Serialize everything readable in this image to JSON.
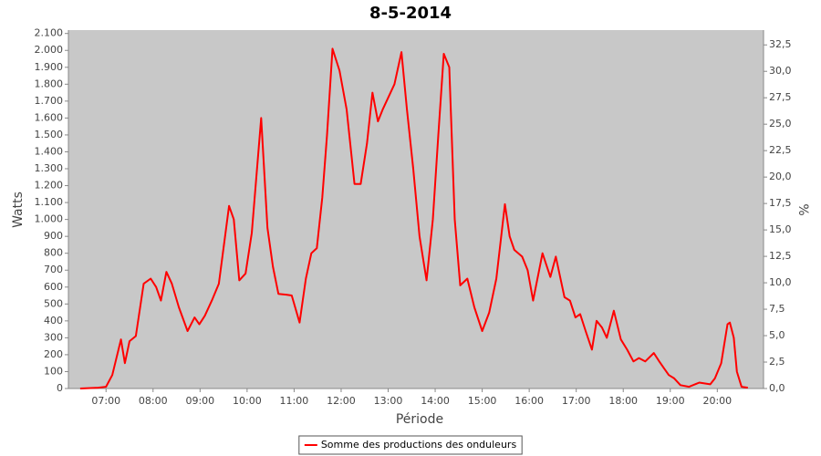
{
  "chart_data": {
    "type": "line",
    "title": "8-5-2014",
    "x_label": "Période",
    "y_label": "Watts",
    "y2_label": "%",
    "x": [
      "06:27",
      "06:50",
      "07:00",
      "07:08",
      "07:19",
      "07:24",
      "07:30",
      "07:38",
      "07:48",
      "07:57",
      "08:04",
      "08:10",
      "08:17",
      "08:24",
      "08:33",
      "08:44",
      "08:53",
      "08:59",
      "09:06",
      "09:15",
      "09:24",
      "09:37",
      "09:43",
      "09:50",
      "09:58",
      "10:06",
      "10:18",
      "10:26",
      "10:33",
      "10:40",
      "10:50",
      "10:57",
      "11:07",
      "11:15",
      "11:22",
      "11:29",
      "11:36",
      "11:42",
      "11:49",
      "11:58",
      "12:07",
      "12:17",
      "12:25",
      "12:33",
      "12:40",
      "12:47",
      "12:53",
      "13:00",
      "13:08",
      "13:17",
      "13:24",
      "13:32",
      "13:40",
      "13:49",
      "13:57",
      "14:04",
      "14:11",
      "14:18",
      "14:25",
      "14:32",
      "14:41",
      "14:50",
      "15:00",
      "15:09",
      "15:18",
      "15:29",
      "15:35",
      "15:41",
      "15:51",
      "15:58",
      "16:05",
      "16:17",
      "16:27",
      "16:34",
      "16:45",
      "16:52",
      "16:59",
      "17:05",
      "17:12",
      "17:20",
      "17:26",
      "17:33",
      "17:39",
      "17:48",
      "17:57",
      "18:05",
      "18:13",
      "18:20",
      "18:28",
      "18:39",
      "18:46",
      "18:52",
      "18:58",
      "19:05",
      "19:13",
      "19:24",
      "19:37",
      "19:51",
      "19:57",
      "20:05",
      "20:13",
      "20:16",
      "20:21",
      "20:25",
      "20:31",
      "20:39"
    ],
    "series": [
      {
        "name": "Somme des productions des onduleurs",
        "color": "#ff0000",
        "values": [
          0,
          5,
          10,
          80,
          290,
          150,
          280,
          310,
          620,
          650,
          600,
          520,
          690,
          620,
          480,
          340,
          420,
          380,
          430,
          520,
          620,
          1080,
          1000,
          640,
          680,
          920,
          1600,
          950,
          720,
          560,
          555,
          550,
          390,
          650,
          800,
          830,
          1130,
          1500,
          2010,
          1880,
          1650,
          1210,
          1210,
          1450,
          1750,
          1580,
          1650,
          1720,
          1800,
          1990,
          1650,
          1300,
          900,
          640,
          1000,
          1500,
          1980,
          1900,
          1000,
          610,
          650,
          480,
          340,
          450,
          650,
          1090,
          900,
          820,
          780,
          700,
          520,
          800,
          660,
          780,
          540,
          520,
          420,
          440,
          340,
          230,
          400,
          360,
          300,
          460,
          290,
          230,
          160,
          180,
          160,
          210,
          160,
          120,
          80,
          60,
          20,
          10,
          35,
          25,
          60,
          150,
          380,
          390,
          300,
          100,
          10,
          5
        ]
      }
    ],
    "xlim": [
      "06:12",
      "20:59"
    ],
    "xticks": [
      "07:00",
      "08:00",
      "09:00",
      "10:00",
      "11:00",
      "12:00",
      "13:00",
      "14:00",
      "15:00",
      "16:00",
      "17:00",
      "18:00",
      "19:00",
      "20:00"
    ],
    "ylim": [
      0,
      2120
    ],
    "yticks": [
      0,
      100,
      200,
      300,
      400,
      500,
      600,
      700,
      800,
      900,
      {
        "value": 1000,
        "label": "1.000"
      },
      {
        "value": 1100,
        "label": "1.100"
      },
      {
        "value": 1200,
        "label": "1.200"
      },
      {
        "value": 1300,
        "label": "1.300"
      },
      {
        "value": 1400,
        "label": "1.400"
      },
      {
        "value": 1500,
        "label": "1.500"
      },
      {
        "value": 1600,
        "label": "1.600"
      },
      {
        "value": 1700,
        "label": "1.700"
      },
      {
        "value": 1800,
        "label": "1.800"
      },
      {
        "value": 1900,
        "label": "1.900"
      },
      {
        "value": 2000,
        "label": "2.000"
      },
      {
        "value": 2100,
        "label": "2.100"
      }
    ],
    "y2lim": [
      0,
      33.9
    ],
    "y2ticks": [
      {
        "value": 0,
        "label": "0,0"
      },
      {
        "value": 2.5,
        "label": "2,5"
      },
      {
        "value": 5,
        "label": "5,0"
      },
      {
        "value": 7.5,
        "label": "7,5"
      },
      {
        "value": 10,
        "label": "10,0"
      },
      {
        "value": 12.5,
        "label": "12,5"
      },
      {
        "value": 15,
        "label": "15,0"
      },
      {
        "value": 17.5,
        "label": "17,5"
      },
      {
        "value": 20,
        "label": "20,0"
      },
      {
        "value": 22.5,
        "label": "22,5"
      },
      {
        "value": 25,
        "label": "25,0"
      },
      {
        "value": 27.5,
        "label": "27,5"
      },
      {
        "value": 30,
        "label": "30,0"
      },
      {
        "value": 32.5,
        "label": "32,5"
      }
    ],
    "grid": false,
    "legend": "bottom"
  }
}
